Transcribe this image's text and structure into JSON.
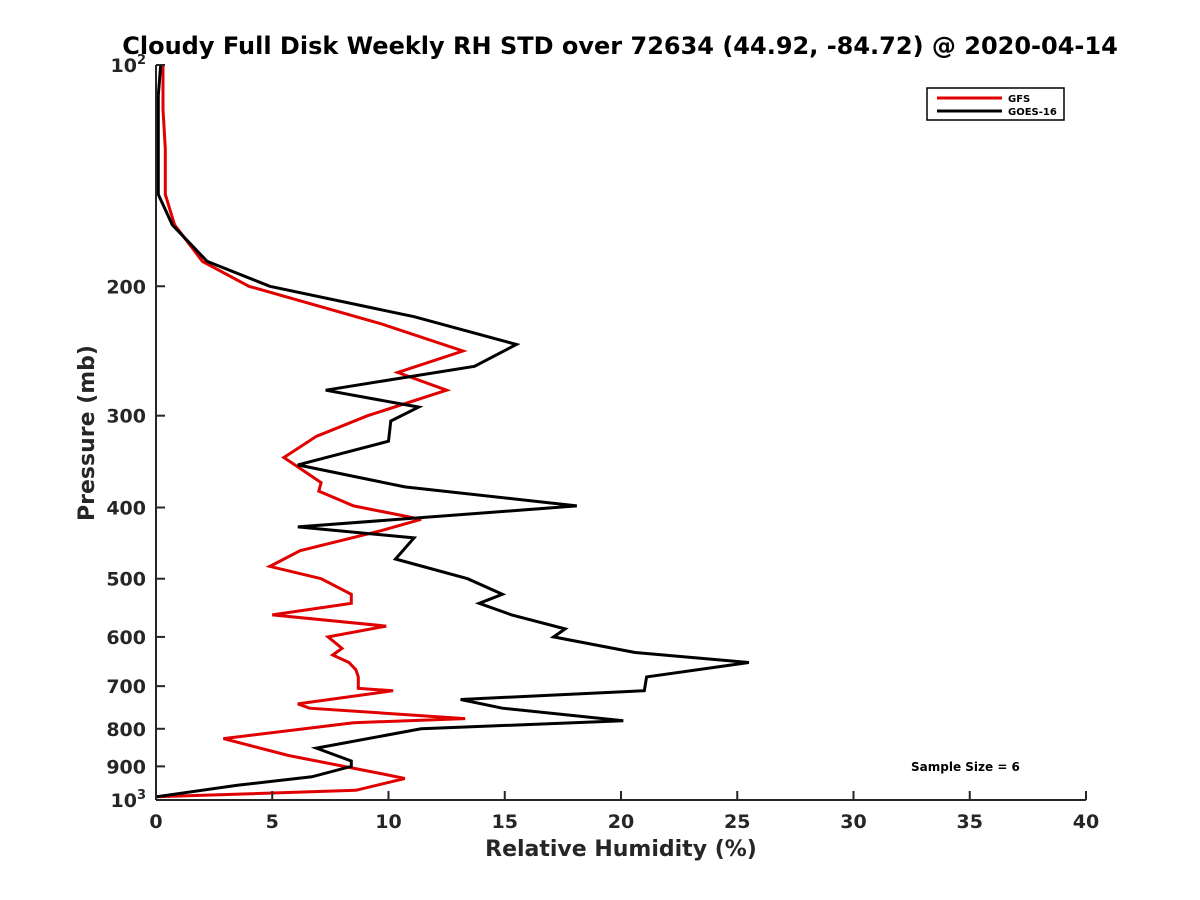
{
  "chart_data": {
    "type": "line",
    "title": "Cloudy Full Disk Weekly RH STD over 72634 (44.92, -84.72) @ 2020-04-14",
    "xlabel": "Relative Humidity (%)",
    "ylabel": "Pressure (mb)",
    "xlim": [
      0,
      40
    ],
    "ylim": [
      100,
      1000
    ],
    "y_scale": "log",
    "y_reversed": true,
    "grid": false,
    "legend_position": "top-right",
    "x_ticks": [
      "0",
      "5",
      "10",
      "15",
      "20",
      "25",
      "30",
      "35",
      "40"
    ],
    "y_ticks": [
      {
        "value": 100,
        "base": "10",
        "exp": "2"
      },
      {
        "value": 200,
        "label": "200"
      },
      {
        "value": 300,
        "label": "300"
      },
      {
        "value": 400,
        "label": "400"
      },
      {
        "value": 500,
        "label": "500"
      },
      {
        "value": 600,
        "label": "600"
      },
      {
        "value": 700,
        "label": "700"
      },
      {
        "value": 800,
        "label": "800"
      },
      {
        "value": 900,
        "label": "900"
      },
      {
        "value": 1000,
        "base": "10",
        "exp": "3"
      }
    ],
    "annotation": "Sample Size = 6",
    "series": [
      {
        "name": "GFS",
        "color": "#e00000",
        "points": [
          [
            0.3,
            100
          ],
          [
            0.3,
            115
          ],
          [
            0.4,
            130
          ],
          [
            0.4,
            150
          ],
          [
            0.8,
            165
          ],
          [
            2,
            185
          ],
          [
            4,
            200
          ],
          [
            9.7,
            225
          ],
          [
            13.2,
            245
          ],
          [
            10.4,
            262
          ],
          [
            12.5,
            277
          ],
          [
            9.1,
            300
          ],
          [
            6.9,
            320
          ],
          [
            5.5,
            342
          ],
          [
            7.1,
            370
          ],
          [
            7.0,
            380
          ],
          [
            8.5,
            398
          ],
          [
            11.4,
            415
          ],
          [
            9.7,
            430
          ],
          [
            6.2,
            458
          ],
          [
            4.9,
            481
          ],
          [
            7.1,
            500
          ],
          [
            8.4,
            525
          ],
          [
            8.4,
            540
          ],
          [
            5.0,
            560
          ],
          [
            9.9,
            580
          ],
          [
            7.4,
            600
          ],
          [
            8.0,
            622
          ],
          [
            7.6,
            635
          ],
          [
            8.3,
            650
          ],
          [
            8.6,
            665
          ],
          [
            8.7,
            680
          ],
          [
            8.7,
            705
          ],
          [
            10.2,
            710
          ],
          [
            6.1,
            740
          ],
          [
            6.6,
            750
          ],
          [
            13.3,
            775
          ],
          [
            8.5,
            785
          ],
          [
            2.9,
            825
          ],
          [
            5.7,
            870
          ],
          [
            10.0,
            925
          ],
          [
            10.7,
            935
          ],
          [
            8.6,
            970
          ],
          [
            0.0,
            990
          ]
        ]
      },
      {
        "name": "GOES-16",
        "color": "#000000",
        "points": [
          [
            0.2,
            100
          ],
          [
            0.1,
            110
          ],
          [
            0.1,
            130
          ],
          [
            0.1,
            150
          ],
          [
            0.7,
            165
          ],
          [
            2.2,
            185
          ],
          [
            4.9,
            200
          ],
          [
            11.1,
            220
          ],
          [
            15.5,
            240
          ],
          [
            13.7,
            257
          ],
          [
            7.3,
            277
          ],
          [
            11.3,
            292
          ],
          [
            10.1,
            305
          ],
          [
            10.0,
            325
          ],
          [
            6.1,
            350
          ],
          [
            10.7,
            375
          ],
          [
            18.1,
            398
          ],
          [
            6.1,
            425
          ],
          [
            11.1,
            440
          ],
          [
            10.3,
            470
          ],
          [
            13.4,
            500
          ],
          [
            14.9,
            525
          ],
          [
            13.9,
            540
          ],
          [
            15.3,
            560
          ],
          [
            17.6,
            585
          ],
          [
            17.1,
            600
          ],
          [
            20.6,
            630
          ],
          [
            25.5,
            650
          ],
          [
            21.1,
            680
          ],
          [
            21.0,
            710
          ],
          [
            13.1,
            730
          ],
          [
            14.9,
            750
          ],
          [
            20.1,
            780
          ],
          [
            11.4,
            800
          ],
          [
            6.9,
            850
          ],
          [
            8.4,
            885
          ],
          [
            8.4,
            900
          ],
          [
            6.7,
            930
          ],
          [
            3.5,
            955
          ],
          [
            0.0,
            990
          ]
        ]
      }
    ]
  }
}
